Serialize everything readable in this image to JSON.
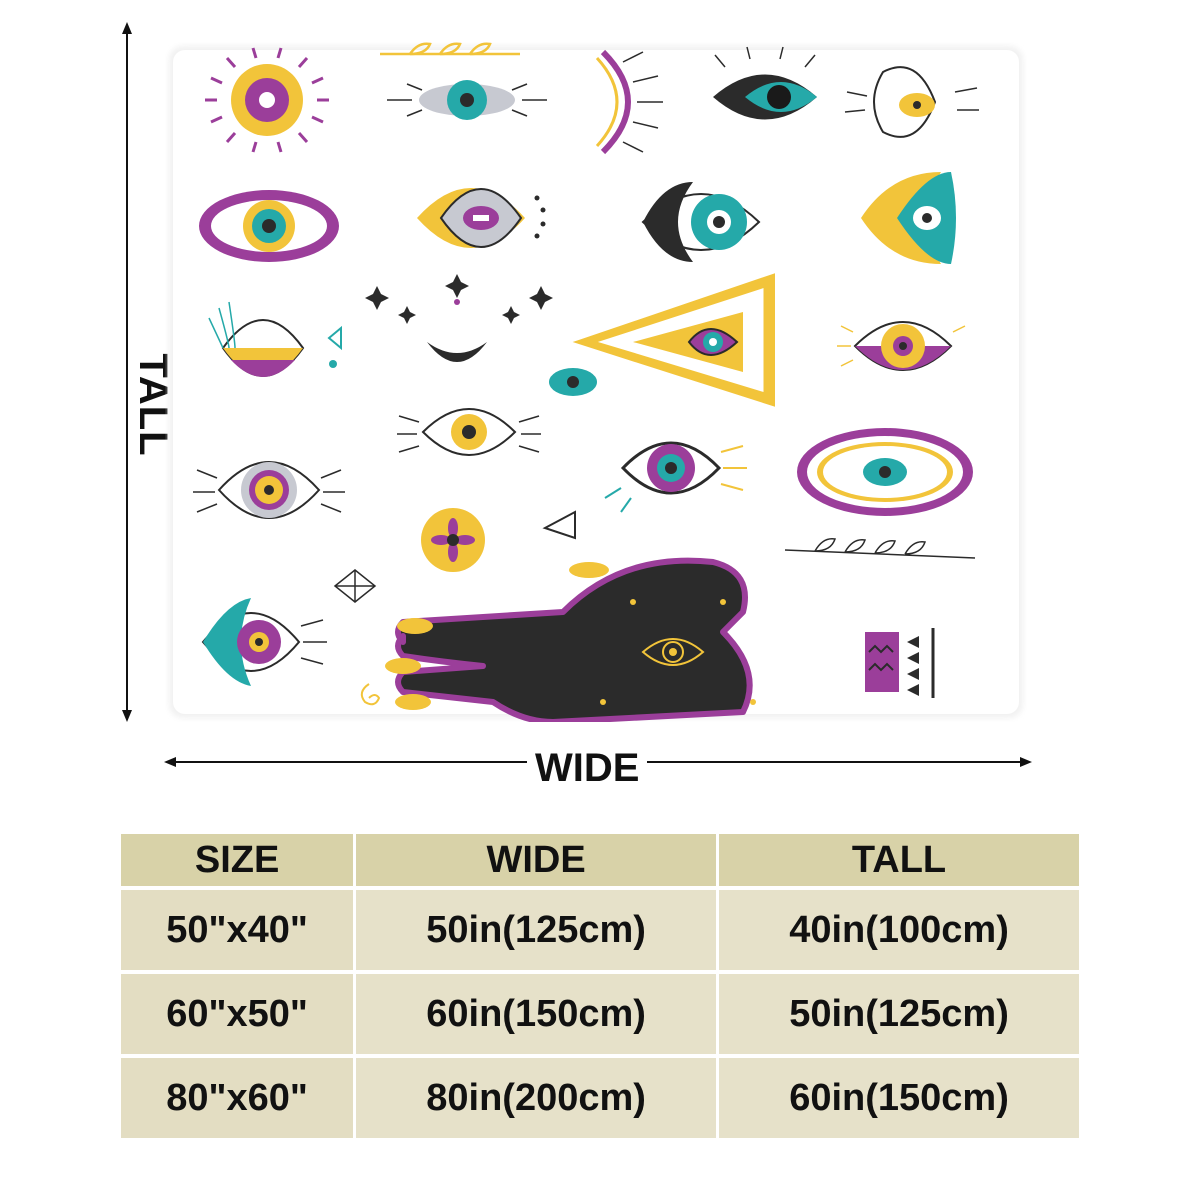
{
  "dimension_labels": {
    "tall": "TALL",
    "wide": "WIDE"
  },
  "colors": {
    "purple": "#9b3e9a",
    "yellow": "#f2c43a",
    "teal": "#25a9a9",
    "dark": "#2b2b2b",
    "table_header": "#d8d2a8",
    "table_cell": "#e6e1c9"
  },
  "size_table": {
    "headers": [
      "SIZE",
      "WIDE",
      "TALL"
    ],
    "rows": [
      {
        "size": "50\"x40\"",
        "wide": "50in(125cm)",
        "tall": "40in(100cm)"
      },
      {
        "size": "60\"x50\"",
        "wide": "60in(150cm)",
        "tall": "50in(125cm)"
      },
      {
        "size": "80\"x60\"",
        "wide": "80in(200cm)",
        "tall": "60in(150cm)"
      }
    ]
  }
}
